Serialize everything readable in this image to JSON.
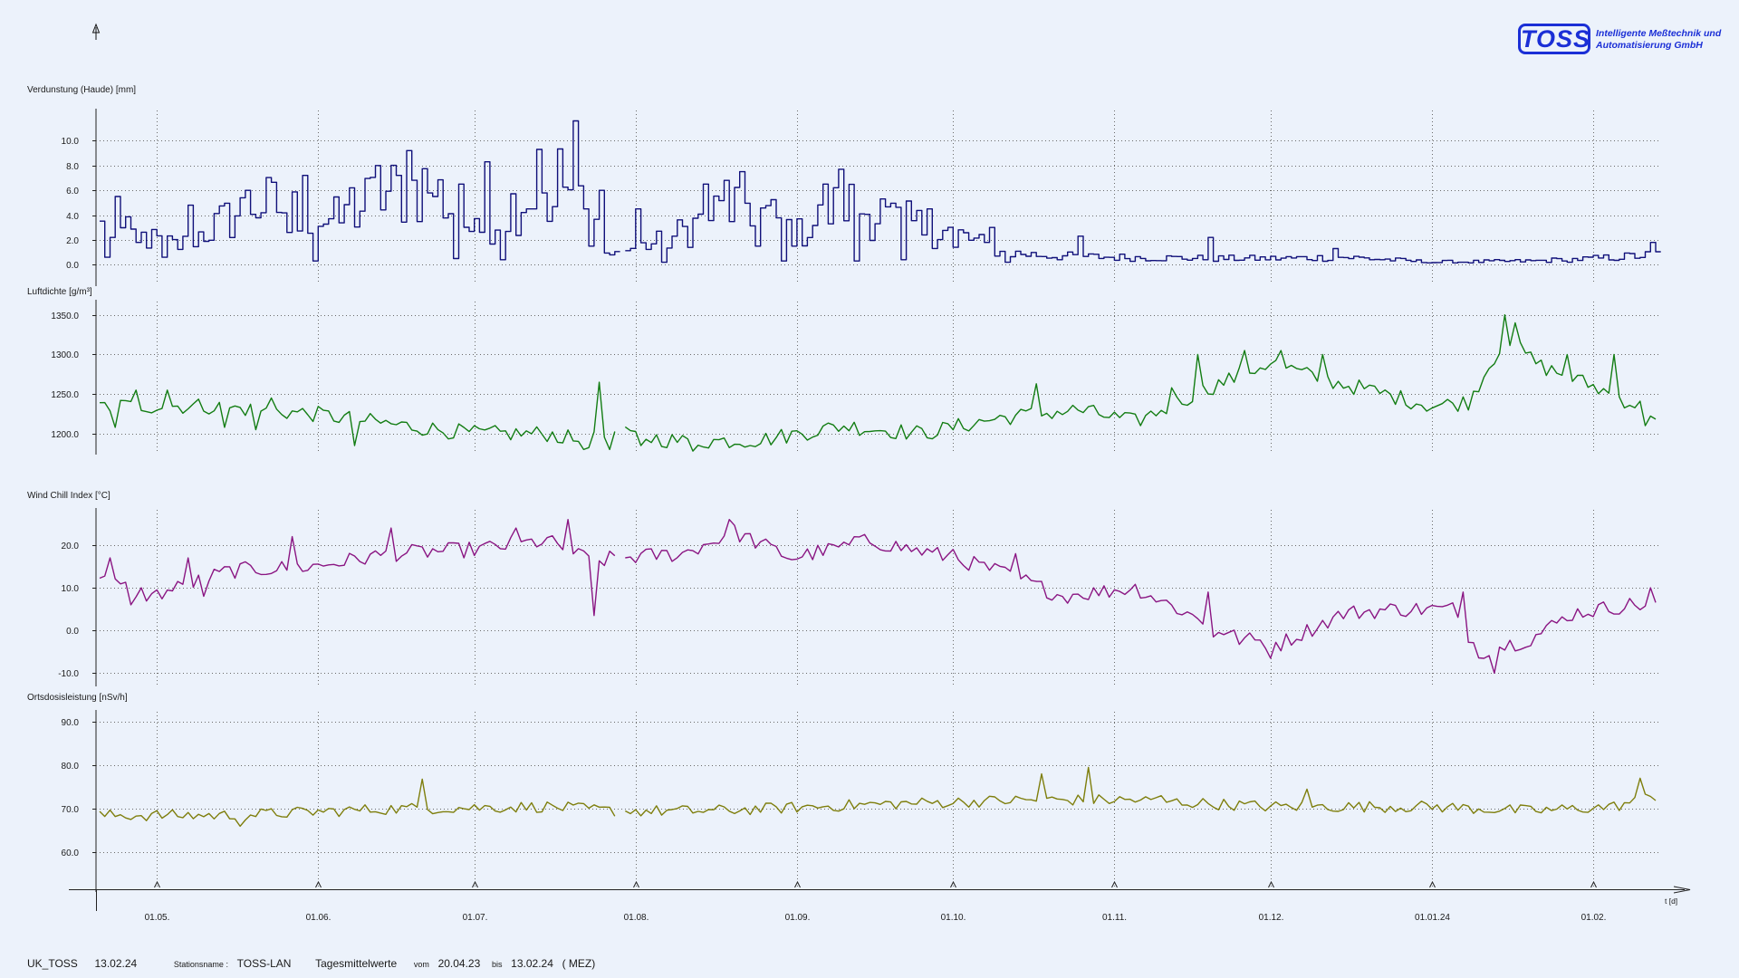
{
  "logo": {
    "brand": "TOSS",
    "line1": "Intelligente Meßtechnik und",
    "line2": "Automatisierung    GmbH"
  },
  "footer": {
    "station_code": "UK_TOSS",
    "print_date": "13.02.24",
    "station_label": "Stationsname :",
    "station_name": "TOSS-LAN",
    "mode": "Tagesmittelwerte",
    "from_label": "vom",
    "from_date": "20.04.23",
    "to_label": "bis",
    "to_date": "13.02.24",
    "timezone": "( MEZ)"
  },
  "chart_data": {
    "type": "line",
    "x_axis": {
      "label": "t [d]",
      "start": "2023-04-20",
      "end": "2024-02-13",
      "ticks": [
        {
          "date": "2023-05-01",
          "label": "01.05."
        },
        {
          "date": "2023-06-01",
          "label": "01.06."
        },
        {
          "date": "2023-07-01",
          "label": "01.07."
        },
        {
          "date": "2023-08-01",
          "label": "01.08."
        },
        {
          "date": "2023-09-01",
          "label": "01.09."
        },
        {
          "date": "2023-10-01",
          "label": "01.10."
        },
        {
          "date": "2023-11-01",
          "label": "01.11."
        },
        {
          "date": "2023-12-01",
          "label": "01.12."
        },
        {
          "date": "2024-01-01",
          "label": "01.01.24"
        },
        {
          "date": "2024-02-01",
          "label": "01.02."
        }
      ],
      "gap": {
        "from": "2023-07-28",
        "to": "2023-07-30"
      }
    },
    "panels": [
      {
        "title": "Verdunstung (Haude) [mm]",
        "color": "#10107a",
        "style": "step",
        "ylim": [
          -1.0,
          12.0
        ],
        "yticks": [
          0,
          2,
          4,
          6,
          8,
          10
        ],
        "ytick_labels": [
          "0.0",
          "2.0",
          "4.0",
          "6.0",
          "8.0",
          "10.0"
        ],
        "anchors": [
          [
            "2023-04-20",
            3.0
          ],
          [
            "2023-05-05",
            1.5
          ],
          [
            "2023-05-20",
            5.0
          ],
          [
            "2023-06-05",
            3.5
          ],
          [
            "2023-06-12",
            5.5
          ],
          [
            "2023-06-22",
            6.5
          ],
          [
            "2023-07-01",
            2.5
          ],
          [
            "2023-07-10",
            5.5
          ],
          [
            "2023-07-17",
            7.0
          ],
          [
            "2023-07-22",
            4.0
          ],
          [
            "2023-07-28",
            1.0
          ],
          [
            "2023-08-07",
            2.0
          ],
          [
            "2023-08-15",
            4.0
          ],
          [
            "2023-08-22",
            5.0
          ],
          [
            "2023-09-01",
            2.5
          ],
          [
            "2023-09-10",
            5.0
          ],
          [
            "2023-09-20",
            3.5
          ],
          [
            "2023-10-01",
            2.5
          ],
          [
            "2023-10-10",
            1.0
          ],
          [
            "2023-10-20",
            0.7
          ],
          [
            "2023-11-01",
            0.6
          ],
          [
            "2023-11-20",
            0.5
          ],
          [
            "2023-12-01",
            0.5
          ],
          [
            "2023-12-15",
            0.6
          ],
          [
            "2024-01-01",
            0.2
          ],
          [
            "2024-01-20",
            0.3
          ],
          [
            "2024-02-01",
            0.5
          ],
          [
            "2024-02-13",
            0.8
          ]
        ],
        "peaks": [
          [
            "2023-04-21",
            0.6
          ],
          [
            "2023-04-23",
            5.5
          ],
          [
            "2023-04-27",
            1.8
          ],
          [
            "2023-05-02",
            0.6
          ],
          [
            "2023-05-07",
            4.8
          ],
          [
            "2023-05-18",
            6.0
          ],
          [
            "2023-05-26",
            2.6
          ],
          [
            "2023-05-29",
            7.2
          ],
          [
            "2023-05-31",
            0.3
          ],
          [
            "2023-06-07",
            6.2
          ],
          [
            "2023-06-12",
            8.0
          ],
          [
            "2023-06-18",
            9.2
          ],
          [
            "2023-06-23",
            5.5
          ],
          [
            "2023-06-27",
            0.5
          ],
          [
            "2023-06-28",
            6.5
          ],
          [
            "2023-07-03",
            8.3
          ],
          [
            "2023-07-06",
            0.4
          ],
          [
            "2023-07-11",
            4.5
          ],
          [
            "2023-07-13",
            9.3
          ],
          [
            "2023-07-15",
            3.5
          ],
          [
            "2023-07-20",
            11.6
          ],
          [
            "2023-07-23",
            1.5
          ],
          [
            "2023-07-25",
            6.0
          ],
          [
            "2023-07-27",
            0.8
          ],
          [
            "2023-08-01",
            4.5
          ],
          [
            "2023-08-06",
            0.2
          ],
          [
            "2023-08-14",
            6.5
          ],
          [
            "2023-08-18",
            6.8
          ],
          [
            "2023-08-24",
            1.5
          ],
          [
            "2023-08-29",
            0.3
          ],
          [
            "2023-09-06",
            6.5
          ],
          [
            "2023-09-09",
            7.7
          ],
          [
            "2023-09-12",
            0.3
          ],
          [
            "2023-09-17",
            5.3
          ],
          [
            "2023-09-21",
            0.4
          ],
          [
            "2023-09-26",
            4.5
          ],
          [
            "2023-10-01",
            1.4
          ],
          [
            "2023-10-08",
            3.0
          ],
          [
            "2023-10-11",
            0.2
          ],
          [
            "2023-10-25",
            2.3
          ],
          [
            "2023-11-19",
            2.2
          ],
          [
            "2023-12-13",
            1.3
          ],
          [
            "2024-01-26",
            0.3
          ],
          [
            "2024-02-12",
            1.8
          ]
        ]
      },
      {
        "title": "Luftdichte [g/m³]",
        "color": "#137d13",
        "style": "line",
        "ylim": [
          1185.0,
          1360.0
        ],
        "yticks": [
          1200,
          1250,
          1300,
          1350
        ],
        "ytick_labels": [
          "1200.0",
          "1250.0",
          "1300.0",
          "1350.0"
        ],
        "anchors": [
          [
            "2023-04-20",
            1235
          ],
          [
            "2023-05-10",
            1235
          ],
          [
            "2023-05-31",
            1225
          ],
          [
            "2023-06-15",
            1212
          ],
          [
            "2023-07-01",
            1200
          ],
          [
            "2023-07-15",
            1200
          ],
          [
            "2023-07-22",
            1190
          ],
          [
            "2023-07-28",
            1200
          ],
          [
            "2023-08-10",
            1190
          ],
          [
            "2023-08-25",
            1192
          ],
          [
            "2023-09-10",
            1210
          ],
          [
            "2023-09-25",
            1200
          ],
          [
            "2023-10-10",
            1220
          ],
          [
            "2023-10-25",
            1230
          ],
          [
            "2023-11-05",
            1215
          ],
          [
            "2023-11-20",
            1260
          ],
          [
            "2023-12-01",
            1290
          ],
          [
            "2023-12-10",
            1270
          ],
          [
            "2023-12-20",
            1255
          ],
          [
            "2024-01-01",
            1235
          ],
          [
            "2024-01-08",
            1240
          ],
          [
            "2024-01-15",
            1320
          ],
          [
            "2024-01-22",
            1285
          ],
          [
            "2024-02-01",
            1260
          ],
          [
            "2024-02-13",
            1225
          ]
        ],
        "peaks": [
          [
            "2023-04-23",
            1208
          ],
          [
            "2023-04-27",
            1255
          ],
          [
            "2023-05-03",
            1255
          ],
          [
            "2023-05-14",
            1208
          ],
          [
            "2023-05-20",
            1205
          ],
          [
            "2023-05-23",
            1245
          ],
          [
            "2023-06-08",
            1185
          ],
          [
            "2023-07-22",
            1180
          ],
          [
            "2023-07-25",
            1265
          ],
          [
            "2023-07-27",
            1180
          ],
          [
            "2023-08-02",
            1185
          ],
          [
            "2023-08-12",
            1178
          ],
          [
            "2023-10-17",
            1263
          ],
          [
            "2023-11-12",
            1258
          ],
          [
            "2023-11-17",
            1300
          ],
          [
            "2023-11-26",
            1305
          ],
          [
            "2023-12-03",
            1305
          ],
          [
            "2023-12-11",
            1300
          ],
          [
            "2024-01-15",
            1350
          ],
          [
            "2024-01-17",
            1340
          ],
          [
            "2024-01-27",
            1300
          ],
          [
            "2024-02-05",
            1300
          ],
          [
            "2024-02-11",
            1210
          ]
        ]
      },
      {
        "title": "Wind Chill Index [°C]",
        "color": "#8a1582",
        "style": "line",
        "ylim": [
          -11.0,
          27.0
        ],
        "yticks": [
          -10,
          0,
          10,
          20
        ],
        "ytick_labels": [
          "-10.0",
          "0.0",
          "10.0",
          "20.0"
        ],
        "anchors": [
          [
            "2023-04-20",
            12
          ],
          [
            "2023-04-30",
            8
          ],
          [
            "2023-05-15",
            14
          ],
          [
            "2023-05-31",
            15
          ],
          [
            "2023-06-15",
            18
          ],
          [
            "2023-07-01",
            19
          ],
          [
            "2023-07-15",
            21
          ],
          [
            "2023-07-24",
            16
          ],
          [
            "2023-07-28",
            17
          ],
          [
            "2023-08-10",
            18
          ],
          [
            "2023-08-20",
            23
          ],
          [
            "2023-08-31",
            17
          ],
          [
            "2023-09-15",
            21
          ],
          [
            "2023-10-01",
            17
          ],
          [
            "2023-10-12",
            13
          ],
          [
            "2023-10-22",
            8
          ],
          [
            "2023-11-05",
            10
          ],
          [
            "2023-11-15",
            4
          ],
          [
            "2023-11-25",
            -2
          ],
          [
            "2023-12-03",
            -3
          ],
          [
            "2023-12-15",
            4
          ],
          [
            "2023-12-25",
            5
          ],
          [
            "2024-01-05",
            5
          ],
          [
            "2024-01-10",
            -5
          ],
          [
            "2024-01-20",
            -2
          ],
          [
            "2024-01-28",
            4
          ],
          [
            "2024-02-08",
            6
          ],
          [
            "2024-02-13",
            6
          ]
        ],
        "peaks": [
          [
            "2023-04-22",
            17
          ],
          [
            "2023-04-26",
            6
          ],
          [
            "2023-05-07",
            17
          ],
          [
            "2023-05-10",
            8
          ],
          [
            "2023-05-27",
            22
          ],
          [
            "2023-06-15",
            24
          ],
          [
            "2023-07-09",
            24
          ],
          [
            "2023-07-19",
            26
          ],
          [
            "2023-07-24",
            3.5
          ],
          [
            "2023-08-19",
            26
          ],
          [
            "2023-09-14",
            22.5
          ],
          [
            "2023-10-01",
            19
          ],
          [
            "2023-10-13",
            18
          ],
          [
            "2023-10-25",
            8.5
          ],
          [
            "2023-11-19",
            9
          ],
          [
            "2023-11-20",
            -1.5
          ],
          [
            "2023-12-01",
            -6.5
          ],
          [
            "2024-01-07",
            9
          ],
          [
            "2024-01-13",
            -10
          ],
          [
            "2024-02-12",
            10
          ]
        ]
      },
      {
        "title": "Ortsdosisleistung [nSv/h]",
        "color": "#7e7e0c",
        "style": "line",
        "ylim": [
          53.0,
          91.0
        ],
        "yticks": [
          60,
          70,
          80,
          90
        ],
        "ytick_labels": [
          "60.0",
          "70.0",
          "80.0",
          "90.0"
        ],
        "anchors": [
          [
            "2023-04-20",
            68.5
          ],
          [
            "2023-05-15",
            68.5
          ],
          [
            "2023-06-15",
            70.0
          ],
          [
            "2023-07-15",
            70.5
          ],
          [
            "2023-07-28",
            69.5
          ],
          [
            "2023-08-15",
            69.5
          ],
          [
            "2023-09-15",
            71.0
          ],
          [
            "2023-10-15",
            72.0
          ],
          [
            "2023-11-05",
            72.0
          ],
          [
            "2023-12-01",
            70.5
          ],
          [
            "2024-01-01",
            70.5
          ],
          [
            "2024-01-20",
            69.5
          ],
          [
            "2024-02-05",
            70.5
          ],
          [
            "2024-02-13",
            73.0
          ]
        ],
        "peaks": [
          [
            "2023-05-17",
            66.0
          ],
          [
            "2023-06-21",
            76.8
          ],
          [
            "2023-10-18",
            78.0
          ],
          [
            "2023-10-27",
            79.5
          ],
          [
            "2023-11-10",
            73.0
          ],
          [
            "2023-12-08",
            74.5
          ],
          [
            "2024-02-10",
            77.0
          ]
        ]
      }
    ]
  }
}
